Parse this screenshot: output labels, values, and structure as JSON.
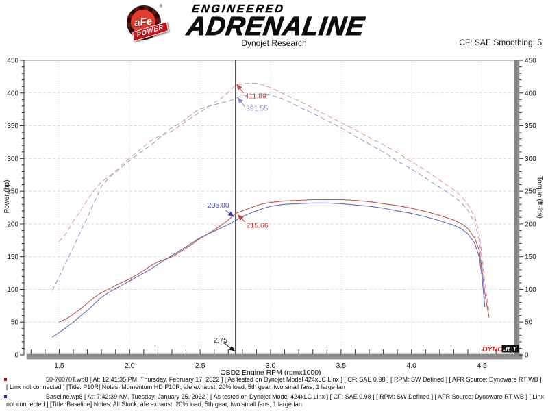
{
  "header": {
    "logo": {
      "circle_text": "aFe",
      "reg_mark": "®",
      "banner_text": "POWER",
      "line1": "ENGINEERED",
      "line2": "ADRENALINE"
    },
    "title": "Dynojet Research",
    "smoothing": "CF: SAE Smoothing: 5"
  },
  "watermark": {
    "part1": "DYNO",
    "part2": "JET"
  },
  "chart_data": {
    "type": "line",
    "title": "Dynojet Research",
    "xlabel": "OBD2 Engine RPM (rpmx1000)",
    "ylabel_left": "Power (hp)",
    "ylabel_right": "Torque (ft-lbs)",
    "xlim": [
      1.25,
      4.75
    ],
    "ylim": [
      0,
      450
    ],
    "x_tick_labels": [
      "1.5",
      "2.0",
      "2.5",
      "3.0",
      "3.5",
      "4.0",
      "4.5"
    ],
    "x_ticks": [
      1.5,
      2.0,
      2.5,
      3.0,
      3.5,
      4.0,
      4.5
    ],
    "x_minor_step": 0.1,
    "y_ticks": [
      0,
      50,
      100,
      150,
      200,
      250,
      300,
      350,
      400,
      450
    ],
    "y_minor_step": 10,
    "grid": true,
    "cursor_rpm": 2.75,
    "cursor_readouts": {
      "p10r_torque": 411.89,
      "baseline_torque": 391.55,
      "p10r_power": 215.66,
      "baseline_power": 205.0
    },
    "series": [
      {
        "name": "P10R Power (hp)",
        "color": "#c0504d",
        "dash": false,
        "points": [
          [
            1.5,
            50
          ],
          [
            1.55,
            55
          ],
          [
            1.6,
            62
          ],
          [
            1.65,
            70
          ],
          [
            1.7,
            79
          ],
          [
            1.75,
            88
          ],
          [
            1.8,
            95
          ],
          [
            1.85,
            100
          ],
          [
            1.9,
            106
          ],
          [
            1.95,
            111
          ],
          [
            2.0,
            116
          ],
          [
            2.05,
            122
          ],
          [
            2.1,
            129
          ],
          [
            2.15,
            136
          ],
          [
            2.2,
            142
          ],
          [
            2.25,
            146
          ],
          [
            2.3,
            150
          ],
          [
            2.35,
            156
          ],
          [
            2.4,
            163
          ],
          [
            2.45,
            170
          ],
          [
            2.5,
            178
          ],
          [
            2.55,
            184
          ],
          [
            2.6,
            191
          ],
          [
            2.65,
            198
          ],
          [
            2.7,
            206
          ],
          [
            2.75,
            215.66
          ],
          [
            2.8,
            220
          ],
          [
            2.85,
            224
          ],
          [
            2.9,
            228
          ],
          [
            2.95,
            231
          ],
          [
            3.0,
            233
          ],
          [
            3.1,
            235
          ],
          [
            3.2,
            236
          ],
          [
            3.3,
            237
          ],
          [
            3.4,
            237
          ],
          [
            3.5,
            237
          ],
          [
            3.6,
            236
          ],
          [
            3.7,
            234
          ],
          [
            3.8,
            231
          ],
          [
            3.9,
            228
          ],
          [
            4.0,
            224
          ],
          [
            4.1,
            219
          ],
          [
            4.2,
            213
          ],
          [
            4.3,
            206
          ],
          [
            4.35,
            201
          ],
          [
            4.4,
            193
          ],
          [
            4.45,
            178
          ],
          [
            4.48,
            160
          ],
          [
            4.5,
            130
          ],
          [
            4.52,
            95
          ],
          [
            4.54,
            70
          ],
          [
            4.55,
            57
          ]
        ]
      },
      {
        "name": "Baseline Power (hp)",
        "color": "#6565bb",
        "dash": false,
        "points": [
          [
            1.45,
            27
          ],
          [
            1.5,
            34
          ],
          [
            1.55,
            42
          ],
          [
            1.6,
            50
          ],
          [
            1.65,
            59
          ],
          [
            1.7,
            68
          ],
          [
            1.75,
            78
          ],
          [
            1.8,
            88
          ],
          [
            1.85,
            95
          ],
          [
            1.9,
            101
          ],
          [
            1.95,
            107
          ],
          [
            2.0,
            113
          ],
          [
            2.05,
            119
          ],
          [
            2.1,
            125
          ],
          [
            2.15,
            131
          ],
          [
            2.2,
            138
          ],
          [
            2.25,
            145
          ],
          [
            2.3,
            152
          ],
          [
            2.35,
            158
          ],
          [
            2.4,
            165
          ],
          [
            2.45,
            172
          ],
          [
            2.5,
            179
          ],
          [
            2.55,
            184
          ],
          [
            2.6,
            189
          ],
          [
            2.65,
            194
          ],
          [
            2.7,
            199
          ],
          [
            2.75,
            205.0
          ],
          [
            2.8,
            211
          ],
          [
            2.85,
            216
          ],
          [
            2.9,
            220
          ],
          [
            2.95,
            224
          ],
          [
            3.0,
            227
          ],
          [
            3.1,
            230
          ],
          [
            3.2,
            231
          ],
          [
            3.3,
            232
          ],
          [
            3.4,
            232
          ],
          [
            3.5,
            231
          ],
          [
            3.6,
            229
          ],
          [
            3.7,
            227
          ],
          [
            3.8,
            224
          ],
          [
            3.9,
            220
          ],
          [
            4.0,
            216
          ],
          [
            4.1,
            211
          ],
          [
            4.2,
            205
          ],
          [
            4.3,
            198
          ],
          [
            4.35,
            193
          ],
          [
            4.4,
            185
          ],
          [
            4.45,
            170
          ],
          [
            4.48,
            150
          ],
          [
            4.5,
            120
          ],
          [
            4.52,
            73
          ]
        ]
      },
      {
        "name": "P10R Torque (ft-lbs)",
        "color": "#e39a9a",
        "dash": true,
        "points": [
          [
            1.5,
            173
          ],
          [
            1.55,
            186
          ],
          [
            1.6,
            204
          ],
          [
            1.65,
            219
          ],
          [
            1.7,
            237
          ],
          [
            1.75,
            252
          ],
          [
            1.8,
            264
          ],
          [
            1.85,
            272
          ],
          [
            1.9,
            281
          ],
          [
            1.95,
            291
          ],
          [
            2.0,
            301
          ],
          [
            2.05,
            309
          ],
          [
            2.1,
            318
          ],
          [
            2.15,
            327
          ],
          [
            2.2,
            333
          ],
          [
            2.25,
            337
          ],
          [
            2.3,
            342
          ],
          [
            2.35,
            349
          ],
          [
            2.4,
            357
          ],
          [
            2.45,
            364
          ],
          [
            2.5,
            371
          ],
          [
            2.55,
            378
          ],
          [
            2.6,
            385
          ],
          [
            2.65,
            392
          ],
          [
            2.7,
            401
          ],
          [
            2.75,
            411.89
          ],
          [
            2.8,
            414
          ],
          [
            2.85,
            415
          ],
          [
            2.9,
            415
          ],
          [
            2.95,
            412
          ],
          [
            3.0,
            408
          ],
          [
            3.1,
            398
          ],
          [
            3.2,
            388
          ],
          [
            3.3,
            377
          ],
          [
            3.4,
            366
          ],
          [
            3.5,
            355
          ],
          [
            3.6,
            344
          ],
          [
            3.7,
            332
          ],
          [
            3.8,
            321
          ],
          [
            3.9,
            309
          ],
          [
            4.0,
            295
          ],
          [
            4.1,
            282
          ],
          [
            4.2,
            267
          ],
          [
            4.3,
            252
          ],
          [
            4.35,
            243
          ],
          [
            4.4,
            230
          ],
          [
            4.45,
            210
          ],
          [
            4.48,
            186
          ],
          [
            4.5,
            152
          ],
          [
            4.52,
            110
          ],
          [
            4.54,
            81
          ],
          [
            4.55,
            66
          ]
        ]
      },
      {
        "name": "Baseline Torque (ft-lbs)",
        "color": "#9a9ad8",
        "dash": true,
        "points": [
          [
            1.45,
            98
          ],
          [
            1.5,
            119
          ],
          [
            1.55,
            142
          ],
          [
            1.6,
            164
          ],
          [
            1.65,
            188
          ],
          [
            1.7,
            210
          ],
          [
            1.75,
            234
          ],
          [
            1.8,
            257
          ],
          [
            1.85,
            270
          ],
          [
            1.9,
            279
          ],
          [
            1.95,
            288
          ],
          [
            2.0,
            297
          ],
          [
            2.05,
            305
          ],
          [
            2.1,
            313
          ],
          [
            2.15,
            320
          ],
          [
            2.2,
            329
          ],
          [
            2.25,
            339
          ],
          [
            2.3,
            347
          ],
          [
            2.35,
            353
          ],
          [
            2.4,
            361
          ],
          [
            2.45,
            369
          ],
          [
            2.5,
            376
          ],
          [
            2.55,
            379
          ],
          [
            2.6,
            382
          ],
          [
            2.65,
            385
          ],
          [
            2.7,
            387
          ],
          [
            2.75,
            391.55
          ],
          [
            2.8,
            396
          ],
          [
            2.85,
            398
          ],
          [
            2.9,
            398
          ],
          [
            2.95,
            399
          ],
          [
            3.0,
            397
          ],
          [
            3.1,
            390
          ],
          [
            3.2,
            379
          ],
          [
            3.3,
            369
          ],
          [
            3.4,
            358
          ],
          [
            3.5,
            347
          ],
          [
            3.6,
            334
          ],
          [
            3.7,
            322
          ],
          [
            3.8,
            310
          ],
          [
            3.9,
            296
          ],
          [
            4.0,
            284
          ],
          [
            4.1,
            270
          ],
          [
            4.2,
            256
          ],
          [
            4.3,
            242
          ],
          [
            4.35,
            233
          ],
          [
            4.4,
            221
          ],
          [
            4.45,
            201
          ],
          [
            4.48,
            176
          ],
          [
            4.5,
            140
          ],
          [
            4.52,
            85
          ]
        ]
      }
    ],
    "annotations": [
      {
        "label": "411.89",
        "color": "#cc4444",
        "text_rpm": 2.818,
        "text_val": 392,
        "tail_rpm": 2.808,
        "tail_val": 400,
        "tip_rpm": 2.757,
        "tip_val": 414
      },
      {
        "label": "391.55",
        "color": "#8888cc",
        "text_rpm": 2.825,
        "text_val": 373,
        "tail_rpm": 2.818,
        "tail_val": 379,
        "tip_rpm": 2.765,
        "tip_val": 393.5
      },
      {
        "label": "205.00",
        "color": "#4444bb",
        "text_rpm": 2.551,
        "text_val": 225,
        "tail_rpm": 2.682,
        "tail_val": 220.5,
        "tip_rpm": 2.742,
        "tip_val": 210.5
      },
      {
        "label": "215.66",
        "color": "#cc3333",
        "text_rpm": 2.828,
        "text_val": 194,
        "tail_rpm": 2.818,
        "tail_val": 203,
        "tip_rpm": 2.765,
        "tip_val": 214.5
      },
      {
        "label": "2.75",
        "color": "#111111",
        "text_rpm": 2.594,
        "text_val": 19,
        "tail_rpm": 2.667,
        "tail_val": 18.5,
        "tip_rpm": 2.75,
        "tip_val": 5.2
      }
    ]
  },
  "legend": [
    {
      "color": "#bb1111",
      "text": "50-70070T.wp8 [ At: 12:41:35 PM, Thursday, February 17, 2022 ] [ As tested on Dynojet Model 424xLC Linx ] [ CF: SAE 0.98 ] [ RPM: SW Defined ] [ AFR Source: Dynoware RT WB ] [ Linx not connected ] [Title: P10R]  Notes: Momentum HD P10R, afe exhaust, 20% load, 5th gear, two small fans, 1 large fan"
    },
    {
      "color": "#2222bb",
      "text": "Baseline.wp8 [ At: 7:42:39 AM, Tuesday, January 25, 2022 ] [ As tested on Dynojet Model 424xLC Linx ] [ CF: SAE 0.98 ] [ RPM: SW Defined ] [ AFR Source: Dynoware RT WB ] [ Linx not connected ] [Title: Baseline]  Notes: All Stock, afe exhaust, 20% load, 5th gear, two small fans, 1 large fan"
    }
  ]
}
